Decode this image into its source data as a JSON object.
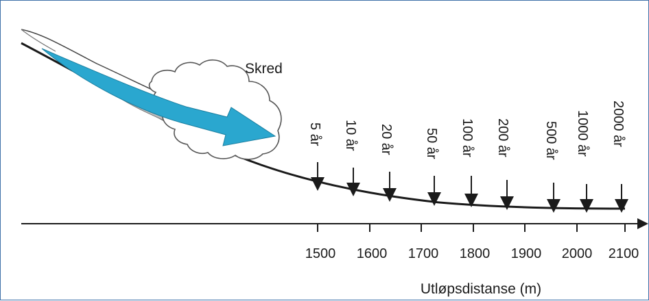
{
  "diagram": {
    "cloud_label": "Skred",
    "axis_title": "Utløpsdistanse (m)",
    "x_ticks": [
      "1500",
      "1600",
      "1700",
      "1800",
      "1900",
      "2000",
      "2100"
    ],
    "return_periods": [
      "5 år",
      "10 år",
      "20 år",
      "50 år",
      "100 år",
      "200 år",
      "500 år",
      "1000 år",
      "2000 år"
    ],
    "colors": {
      "frame": "#3d6fa8",
      "flow_arrow": "#2aa7cf",
      "cloud_fill": "#ffffff",
      "debris": "#bdbdbd",
      "lines": "#1a1a1a"
    }
  }
}
